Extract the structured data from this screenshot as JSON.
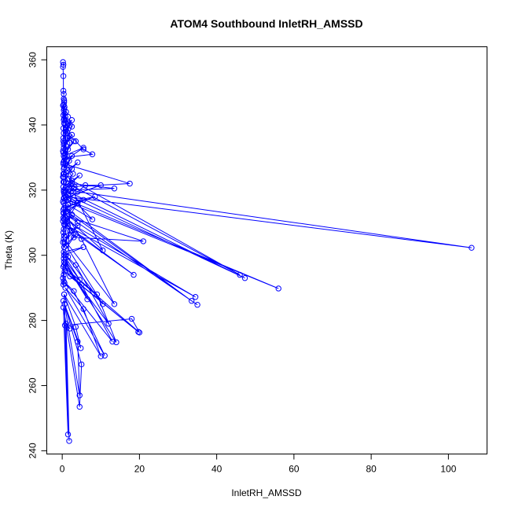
{
  "chart_data": {
    "type": "line",
    "title": "ATOM4 Southbound InletRH_AMSSD",
    "xlabel": "InletRH_AMSSD",
    "ylabel": "Theta (K)",
    "xlim": [
      -4,
      110
    ],
    "ylim": [
      239,
      364
    ],
    "xticks": [
      0,
      20,
      40,
      60,
      80,
      100
    ],
    "yticks": [
      240,
      260,
      280,
      300,
      320,
      340,
      360
    ],
    "grid": false,
    "legend": "none",
    "series_color": "#0000ff",
    "series": [
      {
        "points": [
          [
            0.2,
            359.3
          ],
          [
            0.3,
            358.5
          ],
          [
            0.2,
            357.8
          ],
          [
            0.3,
            355.0
          ],
          [
            0.3,
            350.5
          ],
          [
            0.4,
            349.5
          ],
          [
            0.4,
            348.0
          ],
          [
            0.5,
            347.0
          ],
          [
            0.4,
            346.2
          ],
          [
            0.5,
            345.0
          ],
          [
            0.6,
            343.5
          ],
          [
            0.5,
            342.0
          ],
          [
            0.8,
            340.5
          ],
          [
            1.0,
            339.0
          ],
          [
            1.3,
            337.8
          ],
          [
            2.0,
            336.5
          ],
          [
            3.5,
            335.0
          ],
          [
            5.5,
            332.5
          ],
          [
            7.8,
            331.0
          ],
          [
            0.6,
            330.0
          ],
          [
            0.8,
            328.0
          ],
          [
            17.5,
            322.0
          ],
          [
            1.2,
            321.0
          ],
          [
            4.0,
            319.5
          ],
          [
            106.0,
            302.3
          ],
          [
            1.0,
            318.0
          ],
          [
            3.0,
            317.0
          ],
          [
            7.8,
            311.0
          ],
          [
            1.5,
            315.5
          ],
          [
            0.6,
            312.0
          ],
          [
            10.5,
            301.5
          ],
          [
            0.5,
            325.0
          ],
          [
            2.5,
            323.0
          ],
          [
            46.0,
            294.0
          ],
          [
            1.5,
            322.0
          ],
          [
            0.8,
            320.0
          ],
          [
            47.3,
            293.0
          ],
          [
            0.5,
            319.0
          ],
          [
            2.0,
            316.0
          ],
          [
            56.0,
            289.8
          ],
          [
            0.4,
            317.5
          ],
          [
            1.2,
            313.5
          ],
          [
            33.5,
            286.0
          ],
          [
            0.9,
            314.5
          ],
          [
            4.0,
            310.0
          ],
          [
            35.0,
            284.8
          ],
          [
            0.3,
            313.0
          ],
          [
            1.5,
            309.0
          ],
          [
            34.5,
            287.2
          ],
          [
            0.5,
            311.0
          ],
          [
            2.5,
            307.5
          ],
          [
            18.5,
            294.0
          ],
          [
            0.8,
            309.5
          ],
          [
            3.0,
            305.5
          ],
          [
            21.0,
            304.3
          ],
          [
            1.2,
            312.0
          ],
          [
            5.0,
            305.0
          ],
          [
            13.5,
            285.0
          ],
          [
            0.4,
            305.0
          ],
          [
            1.0,
            303.0
          ],
          [
            10.5,
            285.0
          ],
          [
            0.9,
            300.0
          ],
          [
            3.5,
            297.0
          ],
          [
            12.0,
            279.0
          ],
          [
            0.5,
            297.0
          ],
          [
            2.0,
            293.5
          ],
          [
            19.7,
            276.5
          ],
          [
            0.6,
            295.0
          ],
          [
            5.0,
            291.0
          ],
          [
            13.0,
            273.5
          ],
          [
            0.4,
            292.0
          ],
          [
            3.0,
            289.0
          ],
          [
            11.0,
            269.2
          ],
          [
            0.8,
            290.0
          ],
          [
            5.5,
            283.5
          ],
          [
            10.0,
            269.0
          ],
          [
            0.5,
            288.0
          ],
          [
            3.5,
            278.0
          ],
          [
            4.8,
            271.5
          ],
          [
            0.3,
            286.0
          ],
          [
            4.0,
            273.5
          ],
          [
            4.5,
            257.0
          ],
          [
            0.6,
            285.0
          ],
          [
            5.0,
            266.5
          ],
          [
            4.5,
            253.5
          ],
          [
            0.3,
            284.0
          ],
          [
            1.5,
            245.0
          ],
          [
            0.5,
            288.0
          ],
          [
            1.8,
            243.0
          ],
          [
            1.0,
            279.0
          ],
          [
            2.0,
            277.5
          ],
          [
            0.7,
            278.5
          ],
          [
            18.0,
            280.5
          ],
          [
            20.0,
            276.3
          ],
          [
            0.8,
            296.0
          ],
          [
            9.0,
            288.0
          ],
          [
            14.0,
            273.3
          ],
          [
            0.5,
            298.0
          ],
          [
            6.5,
            286.5
          ],
          [
            0.4,
            299.0
          ],
          [
            4.5,
            292.5
          ],
          [
            0.5,
            300.0
          ],
          [
            5.5,
            302.5
          ],
          [
            0.4,
            301.0
          ],
          [
            3.5,
            306.5
          ],
          [
            0.5,
            302.5
          ],
          [
            2.0,
            307.5
          ],
          [
            0.6,
            304.0
          ],
          [
            4.0,
            309.0
          ],
          [
            0.5,
            306.0
          ],
          [
            1.0,
            310.0
          ],
          [
            0.4,
            308.0
          ],
          [
            2.5,
            312.5
          ],
          [
            0.5,
            309.5
          ],
          [
            4.0,
            316.0
          ],
          [
            0.3,
            311.5
          ],
          [
            1.5,
            318.5
          ],
          [
            0.4,
            313.0
          ],
          [
            5.5,
            317.0
          ],
          [
            0.5,
            314.5
          ],
          [
            8.5,
            318.0
          ],
          [
            0.4,
            316.0
          ],
          [
            6.0,
            321.5
          ],
          [
            10.0,
            321.5
          ],
          [
            0.5,
            317.5
          ],
          [
            3.0,
            320.5
          ],
          [
            0.6,
            318.5
          ],
          [
            2.5,
            322.0
          ],
          [
            13.5,
            320.5
          ],
          [
            0.4,
            320.0
          ],
          [
            4.5,
            324.5
          ],
          [
            0.3,
            321.0
          ],
          [
            1.0,
            325.5
          ],
          [
            0.5,
            322.5
          ],
          [
            2.5,
            326.5
          ],
          [
            0.4,
            324.0
          ],
          [
            4.0,
            328.5
          ],
          [
            0.3,
            325.0
          ],
          [
            2.5,
            330.5
          ],
          [
            0.4,
            326.5
          ],
          [
            1.5,
            332.5
          ],
          [
            0.3,
            328.0
          ],
          [
            1.0,
            333.5
          ],
          [
            0.5,
            329.0
          ],
          [
            5.5,
            333.0
          ],
          [
            0.4,
            330.5
          ],
          [
            3.0,
            335.0
          ],
          [
            0.3,
            331.5
          ],
          [
            1.5,
            336.0
          ],
          [
            0.4,
            333.0
          ],
          [
            2.5,
            337.0
          ],
          [
            0.5,
            334.5
          ],
          [
            1.0,
            338.5
          ],
          [
            0.3,
            336.0
          ],
          [
            2.0,
            340.0
          ],
          [
            0.4,
            337.5
          ],
          [
            2.5,
            341.5
          ],
          [
            0.3,
            339.0
          ],
          [
            1.5,
            342.5
          ],
          [
            0.5,
            340.5
          ],
          [
            1.0,
            344.0
          ],
          [
            0.4,
            341.5
          ],
          [
            0.6,
            345.5
          ],
          [
            0.3,
            343.0
          ],
          [
            0.5,
            347.5
          ],
          [
            0.4,
            344.5
          ],
          [
            0.2,
            346.0
          ],
          [
            0.3,
            335.0
          ],
          [
            0.4,
            334.0
          ],
          [
            0.2,
            332.0
          ],
          [
            0.3,
            328.5
          ],
          [
            0.5,
            327.0
          ],
          [
            0.2,
            324.0
          ],
          [
            0.3,
            322.5
          ],
          [
            0.4,
            319.5
          ],
          [
            0.2,
            316.5
          ],
          [
            0.3,
            314.0
          ],
          [
            0.2,
            310.5
          ],
          [
            0.3,
            307.0
          ],
          [
            0.2,
            304.0
          ],
          [
            0.3,
            296.5
          ],
          [
            0.2,
            293.0
          ],
          [
            0.3,
            291.0
          ],
          [
            0.6,
            291.5
          ],
          [
            0.4,
            294.0
          ],
          [
            0.8,
            297.5
          ],
          [
            1.5,
            299.5
          ],
          [
            2.2,
            319.5
          ],
          [
            3.2,
            321.0
          ],
          [
            1.8,
            323.5
          ],
          [
            2.8,
            325.0
          ],
          [
            1.2,
            327.5
          ],
          [
            1.8,
            329.0
          ],
          [
            0.9,
            331.0
          ],
          [
            2.0,
            334.5
          ],
          [
            1.2,
            336.0
          ],
          [
            2.5,
            339.5
          ],
          [
            1.5,
            341.0
          ],
          [
            0.8,
            342.5
          ],
          [
            1.5,
            340.5
          ],
          [
            0.9,
            338.0
          ]
        ]
      }
    ]
  }
}
